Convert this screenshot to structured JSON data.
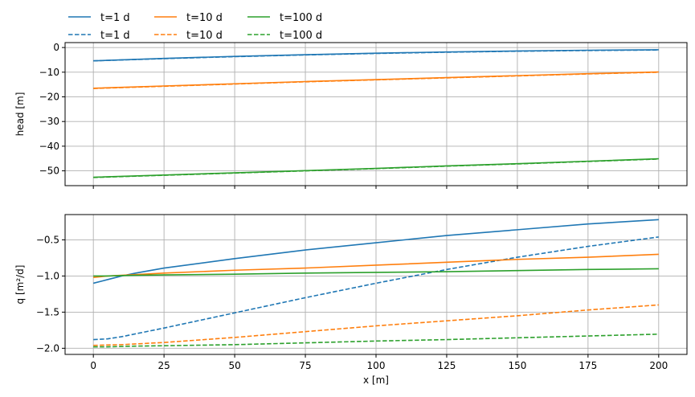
{
  "chart_data": [
    {
      "type": "line",
      "ylabel": "head [m]",
      "xlabel": "",
      "xlim": [
        -10,
        210
      ],
      "ylim": [
        -56,
        2
      ],
      "xticks": [
        0,
        25,
        50,
        75,
        100,
        125,
        150,
        175,
        200
      ],
      "yticks": [
        0,
        -10,
        -20,
        -30,
        -40,
        -50
      ],
      "ytick_labels": [
        "0",
        "−10",
        "−20",
        "−30",
        "−40",
        "−50"
      ],
      "show_xtick_labels": false,
      "grid": true,
      "x": [
        0,
        25,
        50,
        75,
        100,
        125,
        150,
        175,
        200
      ],
      "series": [
        {
          "name": "t=1 d",
          "style": "solid",
          "color": "#1f77b4",
          "values": [
            -5.4,
            -4.4,
            -3.6,
            -2.9,
            -2.3,
            -1.8,
            -1.4,
            -1.1,
            -0.9
          ]
        },
        {
          "name": "t=1 d",
          "style": "dashed",
          "color": "#1f77b4",
          "values": [
            -5.4,
            -4.5,
            -3.7,
            -3.0,
            -2.4,
            -1.9,
            -1.5,
            -1.2,
            -1.0
          ]
        },
        {
          "name": "t=10 d",
          "style": "solid",
          "color": "#ff7f0e",
          "values": [
            -16.5,
            -15.6,
            -14.7,
            -13.8,
            -13.0,
            -12.2,
            -11.4,
            -10.6,
            -9.9
          ]
        },
        {
          "name": "t=10 d",
          "style": "dashed",
          "color": "#ff7f0e",
          "values": [
            -16.6,
            -15.7,
            -14.8,
            -13.9,
            -13.1,
            -12.3,
            -11.5,
            -10.7,
            -10.0
          ]
        },
        {
          "name": "t=100 d",
          "style": "solid",
          "color": "#2ca02c",
          "values": [
            -52.6,
            -51.7,
            -50.8,
            -49.9,
            -49.0,
            -48.0,
            -47.1,
            -46.1,
            -45.1
          ]
        },
        {
          "name": "t=100 d",
          "style": "dashed",
          "color": "#2ca02c",
          "values": [
            -52.7,
            -51.8,
            -50.9,
            -50.0,
            -49.1,
            -48.1,
            -47.2,
            -46.2,
            -45.2
          ]
        }
      ]
    },
    {
      "type": "line",
      "ylabel": "q [m²/d]",
      "xlabel": "x [m]",
      "xlim": [
        -10,
        210
      ],
      "ylim": [
        -2.085,
        -0.15
      ],
      "xticks": [
        0,
        25,
        50,
        75,
        100,
        125,
        150,
        175,
        200
      ],
      "xtick_labels": [
        "0",
        "25",
        "50",
        "75",
        "100",
        "125",
        "150",
        "175",
        "200"
      ],
      "yticks": [
        -0.5,
        -1.0,
        -1.5,
        -2.0
      ],
      "ytick_labels": [
        "−0.5",
        "−1.0",
        "−1.5",
        "−2.0"
      ],
      "grid": true,
      "x": [
        0,
        5,
        10,
        15,
        25,
        50,
        75,
        100,
        125,
        150,
        175,
        200
      ],
      "series": [
        {
          "name": "t=1 d",
          "style": "solid",
          "color": "#1f77b4",
          "values": [
            -1.1,
            -1.05,
            -1.0,
            -0.96,
            -0.89,
            -0.76,
            -0.64,
            -0.54,
            -0.44,
            -0.36,
            -0.28,
            -0.22
          ]
        },
        {
          "name": "t=1 d",
          "style": "dashed",
          "color": "#1f77b4",
          "values": [
            -1.88,
            -1.87,
            -1.84,
            -1.8,
            -1.72,
            -1.51,
            -1.3,
            -1.1,
            -0.91,
            -0.74,
            -0.59,
            -0.46
          ]
        },
        {
          "name": "t=10 d",
          "style": "solid",
          "color": "#ff7f0e",
          "values": [
            -1.02,
            -1.0,
            -0.99,
            -0.98,
            -0.96,
            -0.92,
            -0.89,
            -0.85,
            -0.81,
            -0.77,
            -0.74,
            -0.7
          ]
        },
        {
          "name": "t=10 d",
          "style": "dashed",
          "color": "#ff7f0e",
          "values": [
            -1.96,
            -1.955,
            -1.95,
            -1.94,
            -1.92,
            -1.85,
            -1.77,
            -1.69,
            -1.62,
            -1.55,
            -1.47,
            -1.4
          ]
        },
        {
          "name": "t=100 d",
          "style": "solid",
          "color": "#2ca02c",
          "values": [
            -1.0,
            -1.0,
            -0.995,
            -0.99,
            -0.985,
            -0.975,
            -0.96,
            -0.95,
            -0.94,
            -0.925,
            -0.91,
            -0.9
          ]
        },
        {
          "name": "t=100 d",
          "style": "dashed",
          "color": "#2ca02c",
          "values": [
            -1.98,
            -1.98,
            -1.975,
            -1.97,
            -1.965,
            -1.95,
            -1.925,
            -1.9,
            -1.88,
            -1.855,
            -1.83,
            -1.805
          ]
        }
      ]
    }
  ],
  "legend": {
    "placement": "top-left, above plots",
    "entries": [
      {
        "label": "t=1 d",
        "color": "#1f77b4",
        "style": "solid"
      },
      {
        "label": "t=1 d",
        "color": "#1f77b4",
        "style": "dashed"
      },
      {
        "label": "t=10 d",
        "color": "#ff7f0e",
        "style": "solid"
      },
      {
        "label": "t=10 d",
        "color": "#ff7f0e",
        "style": "dashed"
      },
      {
        "label": "t=100 d",
        "color": "#2ca02c",
        "style": "solid"
      },
      {
        "label": "t=100 d",
        "color": "#2ca02c",
        "style": "dashed"
      }
    ]
  }
}
